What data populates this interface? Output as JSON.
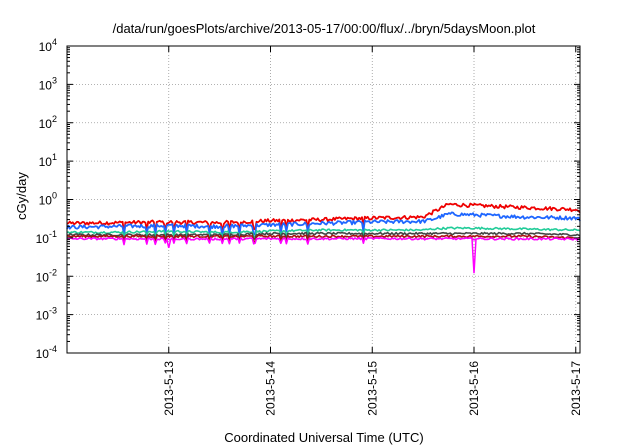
{
  "chart_data": {
    "type": "line",
    "title": "/data/run/goesPlots/archive/2013-05-17/00:00/flux/../bryn/5daysMoon.plot",
    "xlabel": "Coordinated Universal Time (UTC)",
    "ylabel": "cGy/day",
    "yscale": "log",
    "ylim": [
      0.0001,
      10000
    ],
    "xlim": [
      "2013-05-12 00:00",
      "2013-05-17 01:00"
    ],
    "grid": true,
    "x_ticks": [
      "2013-5-13",
      "2013-5-14",
      "2013-5-15",
      "2013-5-16",
      "2013-5-17"
    ],
    "y_ticks": [
      {
        "base": "10",
        "exp": "-4"
      },
      {
        "base": "10",
        "exp": "-3"
      },
      {
        "base": "10",
        "exp": "-2"
      },
      {
        "base": "10",
        "exp": "-1"
      },
      {
        "base": "10",
        "exp": "0"
      },
      {
        "base": "10",
        "exp": "1"
      },
      {
        "base": "10",
        "exp": "2"
      },
      {
        "base": "10",
        "exp": "3"
      },
      {
        "base": "10",
        "exp": "4"
      }
    ],
    "x": [
      "2013-05-12 00:00",
      "2013-05-12 12:00",
      "2013-05-13 00:00",
      "2013-05-13 12:00",
      "2013-05-14 00:00",
      "2013-05-14 12:00",
      "2013-05-15 00:00",
      "2013-05-15 12:00",
      "2013-05-15 14:00",
      "2013-05-15 18:00",
      "2013-05-16 00:00",
      "2013-05-16 12:00",
      "2013-05-17 00:00",
      "2013-05-17 01:00"
    ],
    "series": [
      {
        "color": "#ee0000",
        "values": [
          0.24,
          0.25,
          0.26,
          0.25,
          0.28,
          0.3,
          0.33,
          0.35,
          0.45,
          0.75,
          0.7,
          0.62,
          0.55,
          0.5
        ]
      },
      {
        "color": "#1e66ff",
        "values": [
          0.19,
          0.2,
          0.21,
          0.2,
          0.22,
          0.24,
          0.26,
          0.27,
          0.3,
          0.42,
          0.4,
          0.35,
          0.33,
          0.3
        ]
      },
      {
        "color": "#22cc99",
        "values": [
          0.14,
          0.14,
          0.15,
          0.14,
          0.15,
          0.16,
          0.16,
          0.16,
          0.17,
          0.18,
          0.18,
          0.17,
          0.16,
          0.16
        ]
      },
      {
        "color": "#444444",
        "values": [
          0.12,
          0.12,
          0.12,
          0.12,
          0.13,
          0.13,
          0.13,
          0.13,
          0.13,
          0.13,
          0.13,
          0.13,
          0.12,
          0.12
        ]
      },
      {
        "color": "#aa1111",
        "values": [
          0.11,
          0.11,
          0.11,
          0.11,
          0.11,
          0.11,
          0.11,
          0.11,
          0.11,
          0.11,
          0.11,
          0.11,
          0.1,
          0.1
        ]
      },
      {
        "color": "#ff00ff",
        "values": [
          0.095,
          0.095,
          0.093,
          0.094,
          0.095,
          0.095,
          0.096,
          0.095,
          0.095,
          0.095,
          0.095,
          0.094,
          0.093,
          0.093
        ]
      }
    ],
    "spikes": [
      {
        "x": "2013-05-13 00:00",
        "y": 0.055,
        "color": "#ff00ff"
      },
      {
        "x": "2013-05-16 00:00",
        "y": 0.012,
        "color": "#ff00ff"
      }
    ]
  }
}
